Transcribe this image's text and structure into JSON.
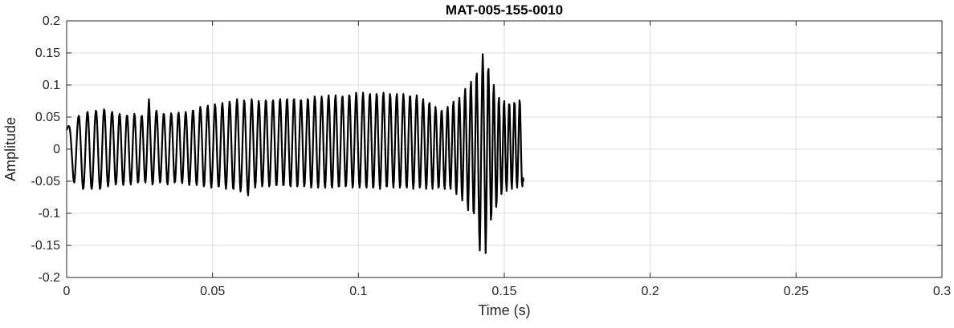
{
  "chart_data": {
    "type": "line",
    "title": "MAT-005-155-0010",
    "xlabel": "Time (s)",
    "ylabel": "Amplitude",
    "xlim": [
      0,
      0.3
    ],
    "ylim": [
      -0.2,
      0.2
    ],
    "grid": true,
    "x_ticks": [
      "0",
      "0.05",
      "0.1",
      "0.15",
      "0.2",
      "0.25",
      "0.3"
    ],
    "y_ticks": [
      "-0.2",
      "-0.15",
      "-0.1",
      "-0.05",
      "0",
      "0.05",
      "0.1",
      "0.15",
      "0.2"
    ],
    "line_color": "#000000",
    "series": [
      {
        "sample_interval": 0.0002,
        "x_start": 0,
        "y": [
          0.03,
          0.032,
          0.034,
          0.036,
          0.036,
          0.034,
          0.028,
          0.018,
          0.005,
          -0.01,
          -0.025,
          -0.04,
          -0.05,
          -0.052,
          -0.045,
          -0.03,
          -0.012,
          0.008,
          0.028,
          0.042,
          0.05,
          0.052,
          0.045,
          0.03,
          0.01,
          -0.012,
          -0.034,
          -0.052,
          -0.062,
          -0.06,
          -0.048,
          -0.028,
          -0.005,
          0.02,
          0.042,
          0.056,
          0.058,
          0.05,
          0.032,
          0.008,
          -0.018,
          -0.042,
          -0.058,
          -0.062,
          -0.055,
          -0.038,
          -0.015,
          0.01,
          0.035,
          0.052,
          0.06,
          0.058,
          0.045,
          0.022,
          -0.005,
          -0.032,
          -0.052,
          -0.062,
          -0.06,
          -0.045,
          -0.022,
          0.005,
          0.032,
          0.052,
          0.062,
          0.06,
          0.045,
          0.02,
          -0.008,
          -0.035,
          -0.052,
          -0.058,
          -0.05,
          -0.032,
          -0.008,
          0.018,
          0.04,
          0.055,
          0.058,
          0.05,
          0.03,
          0.005,
          -0.022,
          -0.045,
          -0.055,
          -0.052,
          -0.038,
          -0.015,
          0.012,
          0.036,
          0.052,
          0.055,
          0.045,
          0.025,
          -0.002,
          -0.028,
          -0.048,
          -0.056,
          -0.05,
          -0.032,
          -0.008,
          0.018,
          0.04,
          0.052,
          0.052,
          0.04,
          0.018,
          -0.008,
          -0.032,
          -0.05,
          -0.055,
          -0.045,
          -0.025,
          0.0,
          0.025,
          0.045,
          0.055,
          0.05,
          0.032,
          0.008,
          -0.018,
          -0.04,
          -0.052,
          -0.05,
          -0.035,
          -0.012,
          0.012,
          0.035,
          0.05,
          0.052,
          0.042,
          0.02,
          -0.005,
          -0.03,
          -0.048,
          -0.052,
          -0.042,
          -0.02,
          0.008,
          0.036,
          0.06,
          0.078,
          0.06,
          0.035,
          0.008,
          -0.02,
          -0.042,
          -0.055,
          -0.052,
          -0.035,
          -0.012,
          0.014,
          0.038,
          0.055,
          0.06,
          0.052,
          0.032,
          0.005,
          -0.022,
          -0.042,
          -0.052,
          -0.048,
          -0.03,
          -0.006,
          0.02,
          0.042,
          0.055,
          0.054,
          0.04,
          0.018,
          -0.008,
          -0.032,
          -0.05,
          -0.055,
          -0.045,
          -0.025,
          0.0,
          0.026,
          0.046,
          0.056,
          0.052,
          0.035,
          0.01,
          -0.018,
          -0.04,
          -0.052,
          -0.05,
          -0.035,
          -0.012,
          0.014,
          0.038,
          0.054,
          0.057,
          0.046,
          0.024,
          -0.004,
          -0.03,
          -0.048,
          -0.053,
          -0.043,
          -0.022,
          0.004,
          0.03,
          0.05,
          0.058,
          0.052,
          0.032,
          0.006,
          -0.022,
          -0.045,
          -0.056,
          -0.05,
          -0.032,
          -0.008,
          0.02,
          0.045,
          0.06,
          0.06,
          0.046,
          0.022,
          -0.006,
          -0.034,
          -0.052,
          -0.056,
          -0.045,
          -0.022,
          0.006,
          0.034,
          0.056,
          0.066,
          0.06,
          0.04,
          0.012,
          -0.018,
          -0.044,
          -0.058,
          -0.055,
          -0.036,
          -0.01,
          0.018,
          0.045,
          0.064,
          0.068,
          0.056,
          0.032,
          0.002,
          -0.028,
          -0.052,
          -0.06,
          -0.05,
          -0.028,
          0.0,
          0.03,
          0.056,
          0.07,
          0.066,
          0.046,
          0.018,
          -0.014,
          -0.042,
          -0.058,
          -0.058,
          -0.042,
          -0.016,
          0.014,
          0.044,
          0.066,
          0.072,
          0.06,
          0.034,
          0.004,
          -0.028,
          -0.052,
          -0.062,
          -0.052,
          -0.03,
          -0.002,
          0.03,
          0.058,
          0.074,
          0.07,
          0.05,
          0.02,
          -0.012,
          -0.042,
          -0.06,
          -0.062,
          -0.046,
          -0.02,
          0.012,
          0.044,
          0.068,
          0.078,
          0.066,
          0.04,
          0.008,
          -0.026,
          -0.054,
          -0.066,
          -0.058,
          -0.034,
          -0.004,
          0.028,
          0.058,
          0.076,
          0.072,
          0.05,
          0.02,
          -0.014,
          -0.045,
          -0.065,
          -0.072,
          -0.056,
          -0.03,
          0.004,
          0.038,
          0.064,
          0.078,
          0.07,
          0.046,
          0.014,
          -0.02,
          -0.048,
          -0.06,
          -0.052,
          -0.03,
          0.0,
          0.032,
          0.06,
          0.075,
          0.07,
          0.05,
          0.02,
          -0.015,
          -0.044,
          -0.058,
          -0.052,
          -0.032,
          -0.004,
          0.028,
          0.058,
          0.076,
          0.074,
          0.054,
          0.022,
          -0.012,
          -0.042,
          -0.058,
          -0.055,
          -0.036,
          -0.008,
          0.024,
          0.054,
          0.074,
          0.076,
          0.058,
          0.028,
          -0.006,
          -0.038,
          -0.056,
          -0.056,
          -0.038,
          -0.01,
          0.022,
          0.052,
          0.074,
          0.078,
          0.062,
          0.032,
          -0.004,
          -0.036,
          -0.056,
          -0.056,
          -0.04,
          -0.012,
          0.02,
          0.052,
          0.075,
          0.078,
          0.062,
          0.032,
          -0.004,
          -0.036,
          -0.056,
          -0.058,
          -0.04,
          -0.012,
          0.022,
          0.054,
          0.076,
          0.078,
          0.06,
          0.028,
          -0.008,
          -0.04,
          -0.058,
          -0.056,
          -0.036,
          -0.006,
          0.026,
          0.056,
          0.076,
          0.076,
          0.056,
          0.024,
          -0.012,
          -0.042,
          -0.058,
          -0.054,
          -0.034,
          -0.004,
          0.03,
          0.06,
          0.078,
          0.076,
          0.054,
          0.02,
          -0.016,
          -0.046,
          -0.06,
          -0.054,
          -0.03,
          0.002,
          0.036,
          0.066,
          0.082,
          0.076,
          0.05,
          0.014,
          -0.022,
          -0.05,
          -0.06,
          -0.05,
          -0.024,
          0.01,
          0.044,
          0.07,
          0.082,
          0.072,
          0.044,
          0.008,
          -0.028,
          -0.054,
          -0.06,
          -0.046,
          -0.018,
          0.016,
          0.05,
          0.076,
          0.084,
          0.07,
          0.04,
          0.004,
          -0.032,
          -0.056,
          -0.06,
          -0.044,
          -0.014,
          0.02,
          0.054,
          0.078,
          0.084,
          0.066,
          0.034,
          -0.002,
          -0.036,
          -0.058,
          -0.058,
          -0.04,
          -0.01,
          0.026,
          0.06,
          0.08,
          0.082,
          0.062,
          0.028,
          -0.008,
          -0.04,
          -0.058,
          -0.056,
          -0.036,
          -0.004,
          0.032,
          0.064,
          0.084,
          0.082,
          0.058,
          0.022,
          -0.014,
          -0.044,
          -0.06,
          -0.054,
          -0.03,
          0.004,
          0.04,
          0.07,
          0.088,
          0.08,
          0.052,
          0.014,
          -0.022,
          -0.05,
          -0.06,
          -0.05,
          -0.022,
          0.014,
          0.05,
          0.078,
          0.088,
          0.074,
          0.042,
          0.004,
          -0.032,
          -0.056,
          -0.06,
          -0.044,
          -0.012,
          0.026,
          0.06,
          0.082,
          0.086,
          0.066,
          0.032,
          -0.006,
          -0.04,
          -0.06,
          -0.058,
          -0.036,
          0.0,
          0.036,
          0.068,
          0.086,
          0.082,
          0.056,
          0.018,
          -0.02,
          -0.05,
          -0.062,
          -0.052,
          -0.022,
          0.016,
          0.052,
          0.08,
          0.088,
          0.072,
          0.038,
          0.0,
          -0.036,
          -0.058,
          -0.058,
          -0.038,
          -0.004,
          0.034,
          0.068,
          0.086,
          0.08,
          0.054,
          0.016,
          -0.022,
          -0.05,
          -0.06,
          -0.048,
          -0.018,
          0.02,
          0.056,
          0.08,
          0.086,
          0.068,
          0.034,
          -0.004,
          -0.04,
          -0.06,
          -0.056,
          -0.032,
          0.004,
          0.042,
          0.072,
          0.086,
          0.076,
          0.046,
          0.008,
          -0.03,
          -0.056,
          -0.06,
          -0.042,
          -0.01,
          0.028,
          0.062,
          0.082,
          0.082,
          0.058,
          0.022,
          -0.016,
          -0.048,
          -0.062,
          -0.052,
          -0.024,
          0.014,
          0.05,
          0.076,
          0.084,
          0.068,
          0.034,
          -0.004,
          -0.04,
          -0.06,
          -0.056,
          -0.03,
          0.006,
          0.044,
          0.07,
          0.078,
          0.062,
          0.028,
          -0.01,
          -0.044,
          -0.062,
          -0.054,
          -0.028,
          0.01,
          0.046,
          0.07,
          0.072,
          0.052,
          0.018,
          -0.02,
          -0.05,
          -0.062,
          -0.048,
          -0.016,
          0.022,
          0.052,
          0.066,
          0.058,
          0.03,
          -0.006,
          -0.04,
          -0.06,
          -0.058,
          -0.034,
          0.0,
          0.034,
          0.058,
          0.06,
          0.04,
          0.008,
          -0.03,
          -0.056,
          -0.062,
          -0.042,
          -0.008,
          0.03,
          0.058,
          0.066,
          0.048,
          0.012,
          -0.028,
          -0.056,
          -0.062,
          -0.04,
          -0.004,
          0.036,
          0.066,
          0.074,
          0.054,
          0.016,
          -0.026,
          -0.06,
          -0.07,
          -0.05,
          -0.01,
          0.034,
          0.068,
          0.08,
          0.06,
          0.018,
          -0.03,
          -0.066,
          -0.08,
          -0.055,
          -0.01,
          0.04,
          0.08,
          0.094,
          0.07,
          0.02,
          -0.035,
          -0.08,
          -0.095,
          -0.06,
          -0.005,
          0.05,
          0.092,
          0.105,
          0.07,
          0.012,
          -0.05,
          -0.096,
          -0.1,
          -0.062,
          0.0,
          0.062,
          0.112,
          0.118,
          0.07,
          0.0,
          -0.074,
          -0.13,
          -0.158,
          -0.11,
          -0.03,
          0.05,
          0.11,
          0.148,
          0.118,
          0.05,
          -0.025,
          -0.1,
          -0.162,
          -0.12,
          -0.04,
          0.05,
          0.12,
          0.125,
          0.08,
          0.01,
          -0.06,
          -0.11,
          -0.1,
          -0.05,
          0.02,
          0.08,
          0.1,
          0.07,
          0.01,
          -0.05,
          -0.09,
          -0.08,
          -0.04,
          0.02,
          0.07,
          0.08,
          0.05,
          0.0,
          -0.045,
          -0.07,
          -0.06,
          -0.02,
          0.03,
          0.068,
          0.075,
          0.04,
          -0.01,
          -0.05,
          -0.065,
          -0.045,
          -0.005,
          0.04,
          0.07,
          0.068,
          0.03,
          -0.015,
          -0.05,
          -0.062,
          -0.04,
          0.0,
          0.04,
          0.072,
          0.07,
          0.032,
          -0.012,
          -0.048,
          -0.06,
          -0.04,
          0.0,
          0.045,
          0.076,
          0.07,
          0.03,
          -0.015,
          -0.05,
          -0.058,
          -0.045,
          -0.05
        ]
      }
    ]
  }
}
